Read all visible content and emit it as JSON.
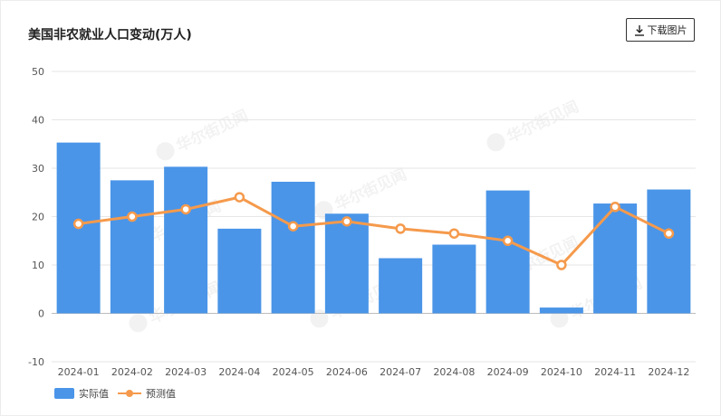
{
  "header": {
    "title": "美国非农就业人口变动(万人)",
    "download_label": "下载图片",
    "download_icon": "download-icon"
  },
  "watermark": {
    "text": "华尔街见闻"
  },
  "colors": {
    "bar": "#4A95E8",
    "line": "#F59A4C",
    "grid": "#E6E6E6",
    "axis_text": "#555555"
  },
  "chart_data": {
    "type": "bar",
    "categories": [
      "2024-01",
      "2024-02",
      "2024-03",
      "2024-04",
      "2024-05",
      "2024-06",
      "2024-07",
      "2024-08",
      "2024-09",
      "2024-10",
      "2024-11",
      "2024-12"
    ],
    "series": [
      {
        "name": "实际值",
        "type": "bar",
        "values": [
          35.3,
          27.5,
          30.3,
          17.5,
          27.2,
          20.6,
          11.4,
          14.2,
          25.4,
          1.2,
          22.7,
          25.6
        ]
      },
      {
        "name": "预测值",
        "type": "line",
        "values": [
          18.5,
          20.0,
          21.5,
          24.0,
          18.0,
          19.0,
          17.5,
          16.5,
          15.0,
          10.0,
          22.0,
          16.5
        ]
      }
    ],
    "title": "美国非农就业人口变动(万人)",
    "ylim": [
      -10,
      50
    ],
    "yticks": [
      -10,
      0,
      10,
      20,
      30,
      40,
      50
    ],
    "grid": true,
    "legend_position": "bottom-left"
  }
}
